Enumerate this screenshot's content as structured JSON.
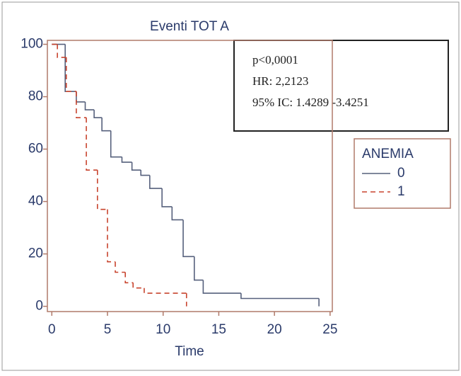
{
  "chart_data": {
    "type": "step",
    "title": "Eventi TOT A",
    "x_label": "Time",
    "xlim": [
      -0.4,
      25.2
    ],
    "ylim": [
      -2,
      101.5
    ],
    "xticks": [
      0,
      5,
      10,
      15,
      20,
      25
    ],
    "yticks": [
      0,
      20,
      40,
      60,
      80,
      100
    ],
    "annotations": [
      "p<0,0001",
      "HR: 2,2123",
      "95% IC: 1.4289 -3.4251"
    ],
    "legend_title": "ANEMIA",
    "series": [
      {
        "name": "0",
        "color": "#56607c",
        "dash": false,
        "x": [
          0,
          1.2,
          2.2,
          3.0,
          3.8,
          4.5,
          5.3,
          6.3,
          7.2,
          8.0,
          8.8,
          9.9,
          10.8,
          11.8,
          12.8,
          13.6,
          17,
          24
        ],
        "values": [
          100,
          82,
          78,
          75,
          72,
          67,
          57,
          55,
          52,
          50,
          45,
          38,
          33,
          19,
          10,
          5,
          3,
          0
        ]
      },
      {
        "name": "1",
        "color": "#c8442e",
        "dash": true,
        "x": [
          0,
          0.5,
          1.3,
          2.2,
          3.1,
          4.1,
          5.0,
          5.7,
          6.6,
          7.3,
          8.3,
          12.1
        ],
        "values": [
          100,
          95,
          82,
          72,
          52,
          37,
          17,
          13,
          9,
          7,
          5,
          0
        ]
      }
    ]
  }
}
